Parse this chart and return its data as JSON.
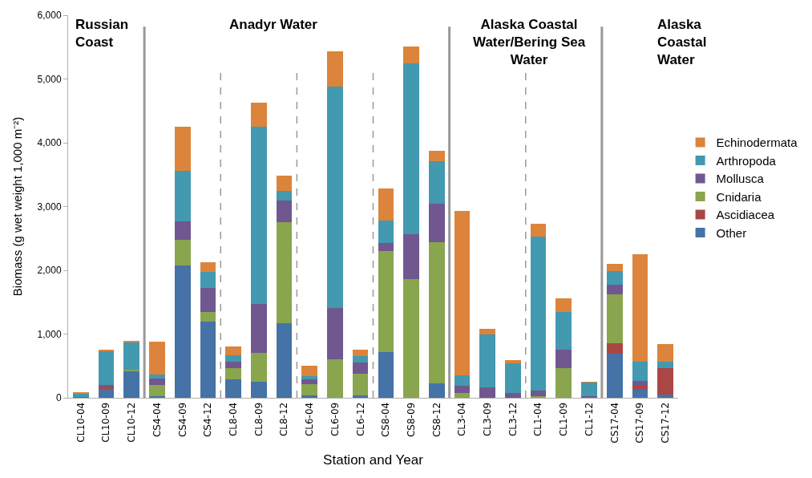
{
  "chart_data": {
    "type": "bar",
    "stacked": true,
    "xlabel": "Station and Year",
    "ylabel": "Biomass (g wet weight 1,000 m⁻²)",
    "categories": [
      "CL10-04",
      "CL10-09",
      "CL10-12",
      "CS4-04",
      "CS4-09",
      "CS4-12",
      "CL8-04",
      "CL8-09",
      "CL8-12",
      "CL6-04",
      "CL6-09",
      "CL6-12",
      "CS8-04",
      "CS8-09",
      "CS8-12",
      "CL3-04",
      "CL3-09",
      "CL3-12",
      "CL1-04",
      "CL1-09",
      "CL1-12",
      "CS17-04",
      "CS17-09",
      "CS17-12"
    ],
    "series": [
      {
        "name": "Other",
        "color": "#4572a7",
        "values": [
          10,
          150,
          410,
          20,
          2070,
          1200,
          290,
          250,
          1170,
          40,
          0,
          40,
          720,
          0,
          230,
          0,
          0,
          0,
          0,
          0,
          0,
          690,
          120,
          50
        ]
      },
      {
        "name": "Ascidiacea",
        "color": "#aa4643",
        "values": [
          0,
          20,
          0,
          0,
          0,
          null,
          0,
          0,
          0,
          0,
          0,
          0,
          0,
          0,
          0,
          0,
          0,
          0,
          0,
          0,
          0,
          160,
          70,
          420
        ]
      },
      {
        "name": "Cnidaria",
        "color": "#89a54e",
        "values": [
          0,
          null,
          30,
          180,
          410,
          140,
          180,
          450,
          1580,
          180,
          600,
          340,
          1580,
          1860,
          2210,
          80,
          0,
          0,
          30,
          460,
          0,
          770,
          0,
          0
        ]
      },
      {
        "name": "Mollusca",
        "color": "#71578f",
        "values": [
          0,
          30,
          0,
          100,
          290,
          380,
          90,
          770,
          340,
          70,
          810,
          170,
          130,
          710,
          600,
          110,
          160,
          80,
          80,
          290,
          20,
          150,
          70,
          0
        ]
      },
      {
        "name": "Arthropoda",
        "color": "#4299b0",
        "values": [
          60,
          530,
          440,
          60,
          790,
          260,
          110,
          2780,
          150,
          50,
          3470,
          110,
          350,
          2670,
          670,
          160,
          840,
          460,
          2420,
          590,
          220,
          220,
          300,
          100
        ]
      },
      {
        "name": "Echinodermata",
        "color": "#dc843b",
        "values": [
          10,
          20,
          10,
          520,
          690,
          140,
          130,
          380,
          240,
          160,
          560,
          100,
          500,
          270,
          170,
          2580,
          80,
          50,
          200,
          220,
          10,
          110,
          1690,
          270
        ]
      }
    ],
    "ylim": [
      0,
      6000
    ],
    "yticks": [
      {
        "value": 0,
        "label": "0"
      },
      {
        "value": 1000,
        "label": "1,000"
      },
      {
        "value": 2000,
        "label": "2,000"
      },
      {
        "value": 3000,
        "label": "3,000"
      },
      {
        "value": 4000,
        "label": "4,000"
      },
      {
        "value": 5000,
        "label": "5,000"
      },
      {
        "value": 6000,
        "label": "6,000"
      }
    ],
    "legend": "right",
    "annotations": [
      "Russian\nCoast",
      "Anadyr Water",
      "Alaska Coastal\nWater/Bering Sea\nWater",
      "Alaska\nCoastal\nWater"
    ]
  }
}
